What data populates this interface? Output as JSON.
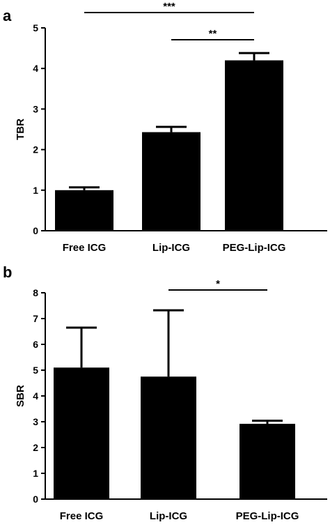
{
  "chart_data": [
    {
      "panel": "a",
      "type": "bar",
      "ylabel": "TBR",
      "xlabel": "",
      "ylim": [
        0,
        5
      ],
      "yticks": [
        0,
        1,
        2,
        3,
        4,
        5
      ],
      "categories": [
        "Free ICG",
        "Lip-ICG",
        "PEG-Lip-ICG"
      ],
      "values": [
        1.0,
        2.43,
        4.2
      ],
      "errors": [
        0.07,
        0.13,
        0.18
      ],
      "significance": [
        {
          "from": 0,
          "to": 2,
          "label": "***"
        },
        {
          "from": 1,
          "to": 2,
          "label": "**"
        }
      ],
      "bar_color": "#000000"
    },
    {
      "panel": "b",
      "type": "bar",
      "ylabel": "SBR",
      "xlabel": "",
      "ylim": [
        0,
        8
      ],
      "yticks": [
        0,
        1,
        2,
        3,
        4,
        5,
        6,
        7,
        8
      ],
      "categories": [
        "Free ICG",
        "Lip-ICG",
        "PEG-Lip-ICG"
      ],
      "values": [
        5.1,
        4.75,
        2.92
      ],
      "errors": [
        1.55,
        2.57,
        0.12
      ],
      "significance": [
        {
          "from": 1,
          "to": 2,
          "label": "*"
        }
      ],
      "bar_color": "#000000"
    }
  ]
}
